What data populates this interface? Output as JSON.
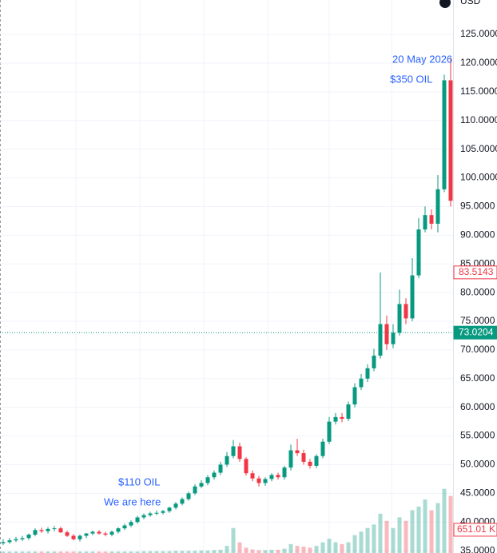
{
  "chart_data": {
    "type": "candlestick",
    "currency": "USD",
    "annotations": [
      "20 May 2026",
      "$350 OIL",
      "$110 OIL",
      "We are here"
    ],
    "up_color": "#089981",
    "down_color": "#f23645",
    "ylim": [
      34.6,
      131
    ],
    "yticks": [
      {
        "value": 35,
        "label": "35.0000"
      },
      {
        "value": 40,
        "label": "40.0000"
      },
      {
        "value": 45,
        "label": "45.0000"
      },
      {
        "value": 50,
        "label": "50.0000"
      },
      {
        "value": 55,
        "label": "55.0000"
      },
      {
        "value": 60,
        "label": "60.0000"
      },
      {
        "value": 65,
        "label": "65.0000"
      },
      {
        "value": 70,
        "label": "70.0000"
      },
      {
        "value": 75,
        "label": "75.0000"
      },
      {
        "value": 80,
        "label": "80.0000"
      },
      {
        "value": 85,
        "label": "85.0000"
      },
      {
        "value": 90,
        "label": "90.0000"
      },
      {
        "value": 95,
        "label": "95.0000"
      },
      {
        "value": 100,
        "label": "100.0000"
      },
      {
        "value": 105,
        "label": "105.0000"
      },
      {
        "value": 110,
        "label": "110.0000"
      },
      {
        "value": 115,
        "label": "115.0000"
      },
      {
        "value": 120,
        "label": "120.0000"
      },
      {
        "value": 125,
        "label": "125.0000"
      }
    ],
    "grid": true,
    "open": [
      36.3,
      36.5,
      36.8,
      37.0,
      37.2,
      37.8,
      38.6,
      38.4,
      38.8,
      38.9,
      38.2,
      37.6,
      37.0,
      37.6,
      38.0,
      38.3,
      38.0,
      37.8,
      38.3,
      38.9,
      39.4,
      40.0,
      40.8,
      41.2,
      41.5,
      41.6,
      41.9,
      42.5,
      43.2,
      44.0,
      45.0,
      46.2,
      46.8,
      47.8,
      48.6,
      50.0,
      51.5,
      53.2,
      51.0,
      48.5,
      47.6,
      46.8,
      47.5,
      48.2,
      47.8,
      49.5,
      52.5,
      52.0,
      50.5,
      49.8,
      51.5,
      54.0,
      57.5,
      58.3,
      58.0,
      60.5,
      63.5,
      65.0,
      66.8,
      69.0,
      74.5,
      71.0,
      73.0,
      78.0,
      75.5,
      83.0,
      91.0,
      93.5,
      92.0,
      98.0,
      117.0
    ],
    "high": [
      37.0,
      37.2,
      37.4,
      37.6,
      38.0,
      38.9,
      39.0,
      39.1,
      39.3,
      39.2,
      38.5,
      37.9,
      37.8,
      38.1,
      38.5,
      38.6,
      38.3,
      38.5,
      39.1,
      39.7,
      40.3,
      41.1,
      41.5,
      41.8,
      42.0,
      42.1,
      42.7,
      43.5,
      44.3,
      45.3,
      46.6,
      47.3,
      48.2,
      49.0,
      50.5,
      52.2,
      54.3,
      53.8,
      51.3,
      49.0,
      48.0,
      47.8,
      48.5,
      48.6,
      49.8,
      53.5,
      54.5,
      52.6,
      51.0,
      51.8,
      54.5,
      58.3,
      59.0,
      59.0,
      61.0,
      64.2,
      65.8,
      67.5,
      70.2,
      83.5,
      76.0,
      74.5,
      80.5,
      79.0,
      86.0,
      93.0,
      95.0,
      94.5,
      100.5,
      118.0,
      121.0
    ],
    "low": [
      36.0,
      36.2,
      36.5,
      36.7,
      36.9,
      37.5,
      38.1,
      38.0,
      38.4,
      38.1,
      37.4,
      36.8,
      36.6,
      37.2,
      37.7,
      37.8,
      37.5,
      37.5,
      38.0,
      38.6,
      39.1,
      39.7,
      40.5,
      40.9,
      41.2,
      41.3,
      41.6,
      42.2,
      42.9,
      43.7,
      44.7,
      45.9,
      46.4,
      47.4,
      48.2,
      49.6,
      51.1,
      50.5,
      48.1,
      47.1,
      46.2,
      46.3,
      47.1,
      47.4,
      47.4,
      49.0,
      51.5,
      50.0,
      49.3,
      49.4,
      51.1,
      53.6,
      57.0,
      57.4,
      57.6,
      60.0,
      63.0,
      64.4,
      66.3,
      68.5,
      70.0,
      70.3,
      72.5,
      74.5,
      75.0,
      82.5,
      90.5,
      91.0,
      90.5,
      97.5,
      95.0
    ],
    "close": [
      36.5,
      36.8,
      37.0,
      37.2,
      37.8,
      38.6,
      38.4,
      38.8,
      38.9,
      38.2,
      37.6,
      37.0,
      37.6,
      38.0,
      38.3,
      38.0,
      37.8,
      38.3,
      38.9,
      39.4,
      40.0,
      40.8,
      41.2,
      41.5,
      41.6,
      41.9,
      42.5,
      43.2,
      44.0,
      45.0,
      46.2,
      46.8,
      47.8,
      48.6,
      50.0,
      51.5,
      53.2,
      51.0,
      48.5,
      47.6,
      46.8,
      47.5,
      48.2,
      47.8,
      49.5,
      52.5,
      52.0,
      50.5,
      49.8,
      51.5,
      54.0,
      57.5,
      58.3,
      58.0,
      60.5,
      63.5,
      65.0,
      66.8,
      69.0,
      74.5,
      71.0,
      73.0,
      78.0,
      75.5,
      83.0,
      91.0,
      93.5,
      92.0,
      98.0,
      117.0,
      96.0
    ],
    "volume": [
      40,
      40,
      40,
      40,
      40,
      40,
      40,
      40,
      40,
      40,
      40,
      40,
      40,
      40,
      40,
      40,
      40,
      40,
      40,
      40,
      40,
      40,
      50,
      50,
      50,
      50,
      50,
      60,
      60,
      60,
      60,
      70,
      70,
      80,
      90,
      200,
      700,
      300,
      150,
      100,
      80,
      80,
      90,
      90,
      120,
      250,
      200,
      180,
      150,
      200,
      300,
      400,
      300,
      250,
      300,
      500,
      600,
      700,
      800,
      1100,
      900,
      700,
      1000,
      900,
      1200,
      1300,
      1500,
      1200,
      1400,
      1800,
      1600
    ],
    "vlim": [
      0,
      15500
    ],
    "price_markers": [
      {
        "value": 83.5143,
        "color": "#f23645",
        "filled": false
      },
      {
        "value": 73.0204,
        "color": "#089981",
        "filled": true
      }
    ],
    "volume_marker": {
      "value": 651.01,
      "label": "651.01 K",
      "color": "#f23645"
    }
  }
}
